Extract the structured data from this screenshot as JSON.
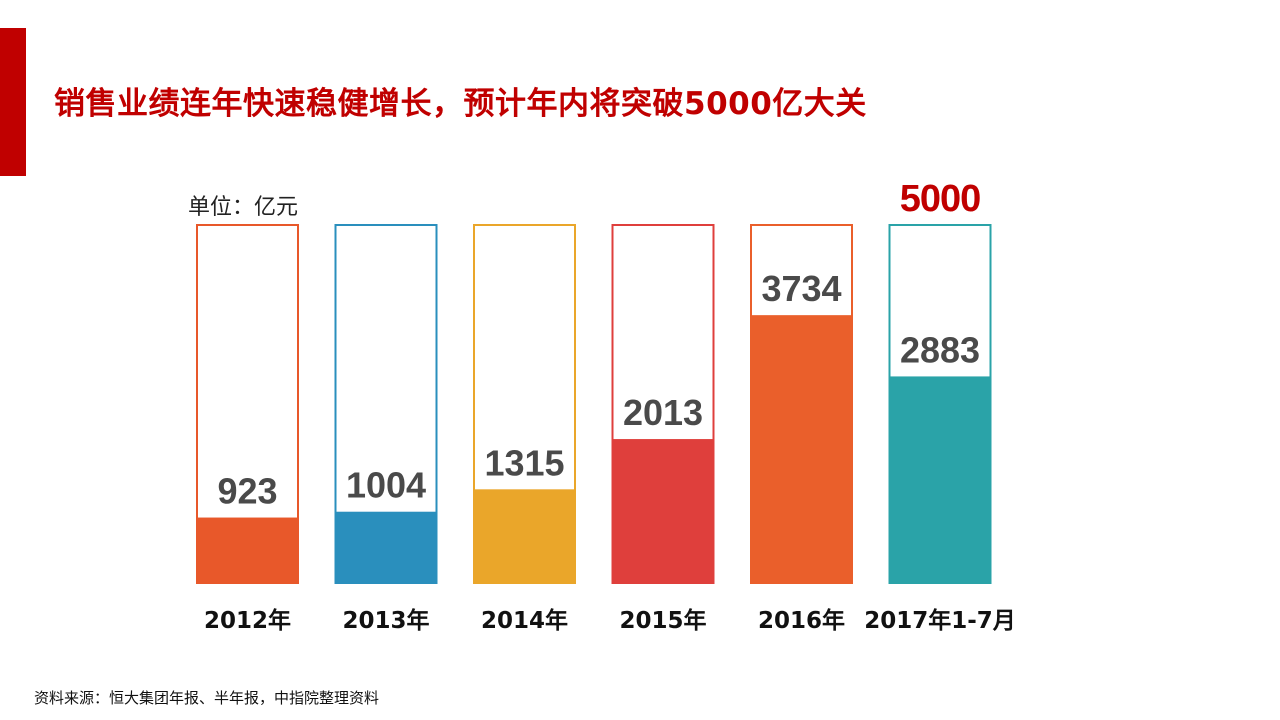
{
  "slide": {
    "title": "销售业绩连年快速稳健增长，预计年内将突破5000亿大关",
    "unit_label": "单位：亿元",
    "target_label": "5000",
    "source": "资料来源：恒大集团年报、半年报，中指院整理资料"
  },
  "colors": {
    "accent": "#c00000",
    "bars": [
      "#e8582a",
      "#2a8fbd",
      "#eaa62a",
      "#df3f3c",
      "#ea5f2b",
      "#2aa3a8"
    ]
  },
  "chart_data": {
    "type": "bar",
    "categories": [
      "2012年",
      "2013年",
      "2014年",
      "2015年",
      "2016年",
      "2017年1-7月"
    ],
    "values": [
      923,
      1004,
      1315,
      2013,
      3734,
      2883
    ],
    "ylabel": "单位：亿元",
    "ylim": [
      0,
      5000
    ],
    "reference_value": 5000,
    "reference_label": "5000",
    "grid": false,
    "legend": "none"
  }
}
